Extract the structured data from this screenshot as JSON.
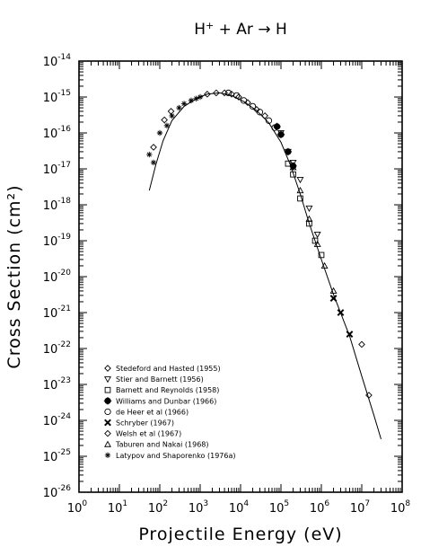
{
  "chart_data": {
    "type": "scatter",
    "title": {
      "base": "H",
      "sup": "+",
      "rest": " + Ar → H"
    },
    "xlabel": "Projectile Energy (eV)",
    "ylabel": "Cross Section (cm²)",
    "xscale": "log",
    "yscale": "log",
    "xlim": [
      1,
      100000000
    ],
    "ylim": [
      1e-26,
      1e-14
    ],
    "x_ticks": [
      {
        "base": "10",
        "exp": "0"
      },
      {
        "base": "10",
        "exp": "1"
      },
      {
        "base": "10",
        "exp": "2"
      },
      {
        "base": "10",
        "exp": "3"
      },
      {
        "base": "10",
        "exp": "4"
      },
      {
        "base": "10",
        "exp": "5"
      },
      {
        "base": "10",
        "exp": "6"
      },
      {
        "base": "10",
        "exp": "7"
      },
      {
        "base": "10",
        "exp": "8"
      }
    ],
    "y_ticks": [
      {
        "base": "10",
        "exp": "-14"
      },
      {
        "base": "10",
        "exp": "-15"
      },
      {
        "base": "10",
        "exp": "-16"
      },
      {
        "base": "10",
        "exp": "-17"
      },
      {
        "base": "10",
        "exp": "-18"
      },
      {
        "base": "10",
        "exp": "-19"
      },
      {
        "base": "10",
        "exp": "-20"
      },
      {
        "base": "10",
        "exp": "-21"
      },
      {
        "base": "10",
        "exp": "-22"
      },
      {
        "base": "10",
        "exp": "-23"
      },
      {
        "base": "10",
        "exp": "-24"
      },
      {
        "base": "10",
        "exp": "-25"
      },
      {
        "base": "10",
        "exp": "-26"
      }
    ],
    "legend_position": "bottom-left",
    "grid": false,
    "fit_curve": [
      [
        55,
        2.5e-18
      ],
      [
        80,
        1.3e-17
      ],
      [
        120,
        6e-17
      ],
      [
        200,
        2.2e-16
      ],
      [
        400,
        5.5e-16
      ],
      [
        800,
        9e-16
      ],
      [
        1500,
        1.2e-15
      ],
      [
        3000,
        1.3e-15
      ],
      [
        6000,
        1.1e-15
      ],
      [
        12000,
        7.5e-16
      ],
      [
        25000,
        4.2e-16
      ],
      [
        50000,
        1.9e-16
      ],
      [
        100000,
        5.5e-17
      ],
      [
        170000,
        1.3e-17
      ],
      [
        300000,
        2e-18
      ],
      [
        500000,
        3e-19
      ],
      [
        1000000,
        3e-20
      ],
      [
        2000000,
        3.2e-21
      ],
      [
        5000000,
        2.2e-22
      ],
      [
        10000000,
        1.7e-23
      ],
      [
        20000000,
        1.4e-24
      ],
      [
        30000000,
        3e-25
      ]
    ],
    "series": [
      {
        "name": "Stedeford and Hasted (1955)",
        "marker": "diamond",
        "points": [
          [
            70,
            4e-17
          ],
          [
            130,
            2.3e-16
          ],
          [
            190,
            4e-16
          ],
          [
            10000000,
            1.3e-22
          ],
          [
            15000000,
            5e-24
          ]
        ]
      },
      {
        "name": "Stier and Barnett (1956)",
        "marker": "triangle-down",
        "points": [
          [
            100000,
            1e-16
          ],
          [
            150000,
            3e-17
          ],
          [
            200000,
            1.5e-17
          ],
          [
            300000,
            5e-18
          ],
          [
            500000,
            8e-19
          ],
          [
            800000,
            1.5e-19
          ]
        ]
      },
      {
        "name": "Barnett and Reynolds (1958)",
        "marker": "square",
        "points": [
          [
            150000,
            1.4e-17
          ],
          [
            200000,
            7e-18
          ],
          [
            300000,
            1.5e-18
          ],
          [
            500000,
            3e-19
          ],
          [
            700000,
            1e-19
          ],
          [
            1000000,
            4e-20
          ]
        ]
      },
      {
        "name": "Williams and Dunbar (1966)",
        "marker": "circle-plus",
        "points": [
          [
            80000,
            1.5e-16
          ],
          [
            100000,
            9e-17
          ],
          [
            150000,
            3e-17
          ],
          [
            200000,
            1.2e-17
          ]
        ]
      },
      {
        "name": "de Heer et al (1966)",
        "marker": "circle",
        "points": [
          [
            5000,
            1.3e-15
          ],
          [
            8000,
            1.1e-15
          ],
          [
            12000,
            8e-16
          ],
          [
            20000,
            5.5e-16
          ],
          [
            30000,
            3.8e-16
          ],
          [
            50000,
            2.2e-16
          ],
          [
            70000,
            1.4e-16
          ]
        ]
      },
      {
        "name": "Schryber (1967)",
        "marker": "x-bold",
        "points": [
          [
            2000000,
            2.5e-21
          ],
          [
            3000000,
            1e-21
          ],
          [
            5000000,
            2.5e-22
          ]
        ]
      },
      {
        "name": "Welsh et al (1967)",
        "marker": "diamond",
        "points": [
          [
            1500,
            1.2e-15
          ],
          [
            2500,
            1.3e-15
          ],
          [
            4000,
            1.3e-15
          ],
          [
            6000,
            1.2e-15
          ],
          [
            9000,
            1e-15
          ],
          [
            15000,
            7e-16
          ],
          [
            25000,
            4.5e-16
          ],
          [
            40000,
            3e-16
          ]
        ]
      },
      {
        "name": "Taburen and Nakai (1968)",
        "marker": "triangle-up",
        "points": [
          [
            200000,
            1.1e-17
          ],
          [
            300000,
            2.5e-18
          ],
          [
            500000,
            4e-19
          ],
          [
            800000,
            8e-20
          ],
          [
            1200000,
            2e-20
          ],
          [
            2000000,
            4e-21
          ]
        ]
      },
      {
        "name": "Latypov and Shaporenko (1976a)",
        "marker": "asterisk",
        "points": [
          [
            55,
            2.5e-17
          ],
          [
            70,
            1.5e-17
          ],
          [
            100,
            1e-16
          ],
          [
            150,
            1.6e-16
          ],
          [
            200,
            3e-16
          ],
          [
            300,
            5e-16
          ],
          [
            400,
            6.5e-16
          ],
          [
            600,
            8e-16
          ],
          [
            800,
            9e-16
          ],
          [
            1000,
            1e-15
          ]
        ]
      }
    ]
  }
}
